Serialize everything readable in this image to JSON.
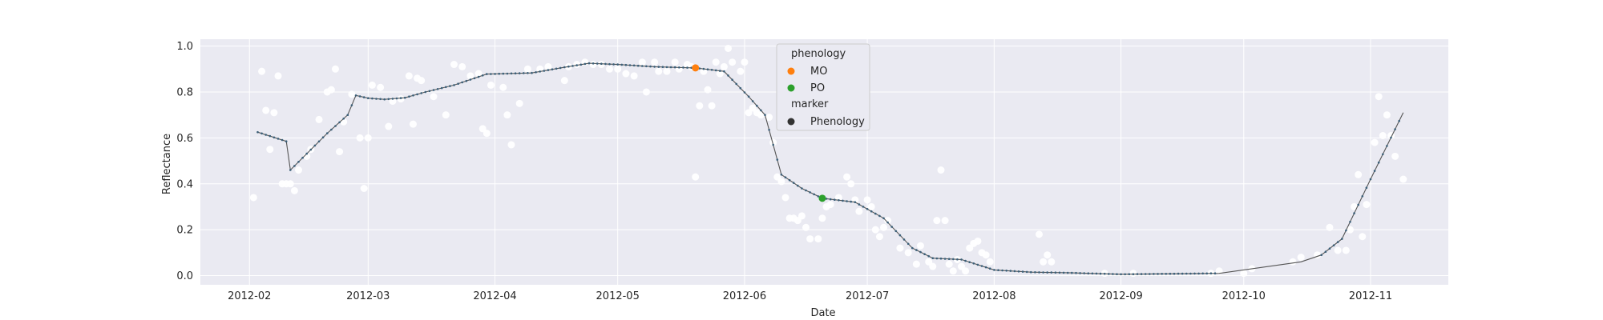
{
  "chart_data": {
    "type": "scatter",
    "title": "",
    "xlabel": "Date",
    "ylabel": "Reflectance",
    "x_type": "date",
    "xlim": [
      "2012-01-20",
      "2012-11-20"
    ],
    "ylim": [
      -0.04,
      1.03
    ],
    "x_ticks": [
      "2012-02-01",
      "2012-03-01",
      "2012-04-01",
      "2012-05-01",
      "2012-06-01",
      "2012-07-01",
      "2012-08-01",
      "2012-09-01",
      "2012-10-01",
      "2012-11-01"
    ],
    "x_tick_labels": [
      "2012-02",
      "2012-03",
      "2012-04",
      "2012-05",
      "2012-06",
      "2012-07",
      "2012-08",
      "2012-09",
      "2012-10",
      "2012-11"
    ],
    "y_ticks": [
      0.0,
      0.2,
      0.4,
      0.6,
      0.8,
      1.0
    ],
    "y_tick_labels": [
      "0.0",
      "0.2",
      "0.4",
      "0.6",
      "0.8",
      "1.0"
    ],
    "grid": true,
    "background": "#eaeaf2",
    "legend_position": "upper center",
    "legend": {
      "phenology_title": "phenology",
      "marker_title": "marker",
      "items": [
        {
          "label": "MO",
          "color": "#ff7f0e"
        },
        {
          "label": "PO",
          "color": "#2ca02c"
        }
      ],
      "marker_item": {
        "label": "Phenology",
        "color": "#333333"
      }
    },
    "colors": {
      "observations": "#ffffff",
      "fit_line": "#555555",
      "fit_points": "#3b5f78"
    },
    "observations": [
      [
        "2012-02-02",
        0.34
      ],
      [
        "2012-02-04",
        0.89
      ],
      [
        "2012-02-05",
        0.72
      ],
      [
        "2012-02-06",
        0.55
      ],
      [
        "2012-02-07",
        0.71
      ],
      [
        "2012-02-08",
        0.87
      ],
      [
        "2012-02-09",
        0.4
      ],
      [
        "2012-02-10",
        0.4
      ],
      [
        "2012-02-11",
        0.4
      ],
      [
        "2012-02-12",
        0.37
      ],
      [
        "2012-02-13",
        0.46
      ],
      [
        "2012-02-15",
        0.52
      ],
      [
        "2012-02-16",
        0.55
      ],
      [
        "2012-02-18",
        0.68
      ],
      [
        "2012-02-20",
        0.8
      ],
      [
        "2012-02-21",
        0.81
      ],
      [
        "2012-02-22",
        0.9
      ],
      [
        "2012-02-23",
        0.54
      ],
      [
        "2012-02-24",
        0.67
      ],
      [
        "2012-02-26",
        0.79
      ],
      [
        "2012-02-28",
        0.6
      ],
      [
        "2012-02-29",
        0.38
      ],
      [
        "2012-03-01",
        0.6
      ],
      [
        "2012-03-02",
        0.83
      ],
      [
        "2012-03-04",
        0.82
      ],
      [
        "2012-03-06",
        0.65
      ],
      [
        "2012-03-07",
        0.76
      ],
      [
        "2012-03-09",
        0.77
      ],
      [
        "2012-03-11",
        0.87
      ],
      [
        "2012-03-12",
        0.66
      ],
      [
        "2012-03-13",
        0.86
      ],
      [
        "2012-03-14",
        0.85
      ],
      [
        "2012-03-17",
        0.78
      ],
      [
        "2012-03-20",
        0.7
      ],
      [
        "2012-03-22",
        0.92
      ],
      [
        "2012-03-24",
        0.91
      ],
      [
        "2012-03-26",
        0.87
      ],
      [
        "2012-03-28",
        0.88
      ],
      [
        "2012-03-29",
        0.64
      ],
      [
        "2012-03-30",
        0.62
      ],
      [
        "2012-03-31",
        0.83
      ],
      [
        "2012-04-03",
        0.82
      ],
      [
        "2012-04-04",
        0.7
      ],
      [
        "2012-04-05",
        0.57
      ],
      [
        "2012-04-07",
        0.75
      ],
      [
        "2012-04-09",
        0.9
      ],
      [
        "2012-04-12",
        0.9
      ],
      [
        "2012-04-14",
        0.91
      ],
      [
        "2012-04-18",
        0.85
      ],
      [
        "2012-04-19",
        0.91
      ],
      [
        "2012-04-21",
        0.92
      ],
      [
        "2012-04-23",
        0.93
      ],
      [
        "2012-04-25",
        0.92
      ],
      [
        "2012-04-27",
        0.92
      ],
      [
        "2012-04-29",
        0.9
      ],
      [
        "2012-05-01",
        0.9
      ],
      [
        "2012-05-03",
        0.88
      ],
      [
        "2012-05-05",
        0.87
      ],
      [
        "2012-05-07",
        0.93
      ],
      [
        "2012-05-08",
        0.8
      ],
      [
        "2012-05-10",
        0.93
      ],
      [
        "2012-05-11",
        0.89
      ],
      [
        "2012-05-13",
        0.89
      ],
      [
        "2012-05-15",
        0.93
      ],
      [
        "2012-05-16",
        0.9
      ],
      [
        "2012-05-18",
        0.92
      ],
      [
        "2012-05-19",
        0.91
      ],
      [
        "2012-05-20",
        0.43
      ],
      [
        "2012-05-21",
        0.74
      ],
      [
        "2012-05-22",
        0.89
      ],
      [
        "2012-05-23",
        0.81
      ],
      [
        "2012-05-24",
        0.74
      ],
      [
        "2012-05-25",
        0.93
      ],
      [
        "2012-05-26",
        0.88
      ],
      [
        "2012-05-27",
        0.91
      ],
      [
        "2012-05-28",
        0.99
      ],
      [
        "2012-05-29",
        0.93
      ],
      [
        "2012-05-31",
        0.89
      ],
      [
        "2012-06-01",
        0.93
      ],
      [
        "2012-06-02",
        0.71
      ],
      [
        "2012-06-03",
        0.73
      ],
      [
        "2012-06-04",
        0.71
      ],
      [
        "2012-06-05",
        0.7
      ],
      [
        "2012-06-07",
        0.69
      ],
      [
        "2012-06-08",
        0.58
      ],
      [
        "2012-06-09",
        0.43
      ],
      [
        "2012-06-10",
        0.41
      ],
      [
        "2012-06-11",
        0.34
      ],
      [
        "2012-06-12",
        0.25
      ],
      [
        "2012-06-13",
        0.25
      ],
      [
        "2012-06-14",
        0.24
      ],
      [
        "2012-06-15",
        0.26
      ],
      [
        "2012-06-16",
        0.21
      ],
      [
        "2012-06-17",
        0.16
      ],
      [
        "2012-06-19",
        0.16
      ],
      [
        "2012-06-20",
        0.25
      ],
      [
        "2012-06-21",
        0.3
      ],
      [
        "2012-06-22",
        0.31
      ],
      [
        "2012-06-24",
        0.34
      ],
      [
        "2012-06-26",
        0.43
      ],
      [
        "2012-06-27",
        0.4
      ],
      [
        "2012-06-28",
        0.33
      ],
      [
        "2012-06-29",
        0.28
      ],
      [
        "2012-07-01",
        0.33
      ],
      [
        "2012-07-02",
        0.3
      ],
      [
        "2012-07-03",
        0.2
      ],
      [
        "2012-07-04",
        0.17
      ],
      [
        "2012-07-05",
        0.21
      ],
      [
        "2012-07-06",
        0.24
      ],
      [
        "2012-07-09",
        0.12
      ],
      [
        "2012-07-11",
        0.1
      ],
      [
        "2012-07-13",
        0.05
      ],
      [
        "2012-07-14",
        0.13
      ],
      [
        "2012-07-16",
        0.06
      ],
      [
        "2012-07-17",
        0.04
      ],
      [
        "2012-07-18",
        0.24
      ],
      [
        "2012-07-19",
        0.46
      ],
      [
        "2012-07-20",
        0.24
      ],
      [
        "2012-07-21",
        0.05
      ],
      [
        "2012-07-22",
        0.02
      ],
      [
        "2012-07-23",
        0.07
      ],
      [
        "2012-07-24",
        0.04
      ],
      [
        "2012-07-25",
        0.02
      ],
      [
        "2012-07-26",
        0.12
      ],
      [
        "2012-07-27",
        0.14
      ],
      [
        "2012-07-28",
        0.15
      ],
      [
        "2012-07-29",
        0.1
      ],
      [
        "2012-07-30",
        0.09
      ],
      [
        "2012-07-31",
        0.06
      ],
      [
        "2012-08-12",
        0.18
      ],
      [
        "2012-08-13",
        0.06
      ],
      [
        "2012-08-14",
        0.09
      ],
      [
        "2012-08-15",
        0.06
      ],
      [
        "2012-08-28",
        0.01
      ],
      [
        "2012-09-04",
        0.01
      ],
      [
        "2012-09-23",
        0.01
      ],
      [
        "2012-09-25",
        0.02
      ],
      [
        "2012-10-01",
        0.01
      ],
      [
        "2012-10-03",
        0.03
      ],
      [
        "2012-10-13",
        0.06
      ],
      [
        "2012-10-15",
        0.08
      ],
      [
        "2012-10-19",
        0.09
      ],
      [
        "2012-10-22",
        0.21
      ],
      [
        "2012-10-24",
        0.11
      ],
      [
        "2012-10-26",
        0.11
      ],
      [
        "2012-10-27",
        0.2
      ],
      [
        "2012-10-28",
        0.3
      ],
      [
        "2012-10-29",
        0.44
      ],
      [
        "2012-10-30",
        0.17
      ],
      [
        "2012-10-31",
        0.31
      ],
      [
        "2012-11-02",
        0.58
      ],
      [
        "2012-11-03",
        0.78
      ],
      [
        "2012-11-04",
        0.61
      ],
      [
        "2012-11-05",
        0.7
      ],
      [
        "2012-11-06",
        0.61
      ],
      [
        "2012-11-07",
        0.52
      ],
      [
        "2012-11-09",
        0.42
      ]
    ],
    "fit_curve": [
      [
        "2012-02-03",
        0.625
      ],
      [
        "2012-02-10",
        0.585
      ],
      [
        "2012-02-11",
        0.46
      ],
      [
        "2012-02-20",
        0.62
      ],
      [
        "2012-02-25",
        0.7
      ],
      [
        "2012-02-27",
        0.785
      ],
      [
        "2012-03-01",
        0.773
      ],
      [
        "2012-03-05",
        0.768
      ],
      [
        "2012-03-10",
        0.775
      ],
      [
        "2012-03-15",
        0.8
      ],
      [
        "2012-03-22",
        0.83
      ],
      [
        "2012-03-30",
        0.878
      ],
      [
        "2012-04-10",
        0.883
      ],
      [
        "2012-04-17",
        0.905
      ],
      [
        "2012-04-24",
        0.925
      ],
      [
        "2012-05-01",
        0.92
      ],
      [
        "2012-05-10",
        0.91
      ],
      [
        "2012-05-20",
        0.905
      ],
      [
        "2012-05-27",
        0.89
      ],
      [
        "2012-06-02",
        0.78
      ],
      [
        "2012-06-06",
        0.7
      ],
      [
        "2012-06-10",
        0.44
      ],
      [
        "2012-06-15",
        0.38
      ],
      [
        "2012-06-20",
        0.337
      ],
      [
        "2012-06-28",
        0.32
      ],
      [
        "2012-07-05",
        0.25
      ],
      [
        "2012-07-12",
        0.12
      ],
      [
        "2012-07-17",
        0.076
      ],
      [
        "2012-07-24",
        0.07
      ],
      [
        "2012-08-01",
        0.025
      ],
      [
        "2012-08-10",
        0.015
      ],
      [
        "2012-08-20",
        0.012
      ],
      [
        "2012-09-01",
        0.006
      ],
      [
        "2012-09-25",
        0.01
      ],
      [
        "2012-10-15",
        0.06
      ],
      [
        "2012-10-20",
        0.09
      ],
      [
        "2012-10-25",
        0.16
      ],
      [
        "2012-11-01",
        0.42
      ],
      [
        "2012-11-09",
        0.71
      ]
    ],
    "phenology_points": [
      {
        "label": "MO",
        "date": "2012-05-20",
        "value": 0.905,
        "color": "#ff7f0e"
      },
      {
        "label": "PO",
        "date": "2012-06-20",
        "value": 0.337,
        "color": "#2ca02c"
      }
    ]
  }
}
